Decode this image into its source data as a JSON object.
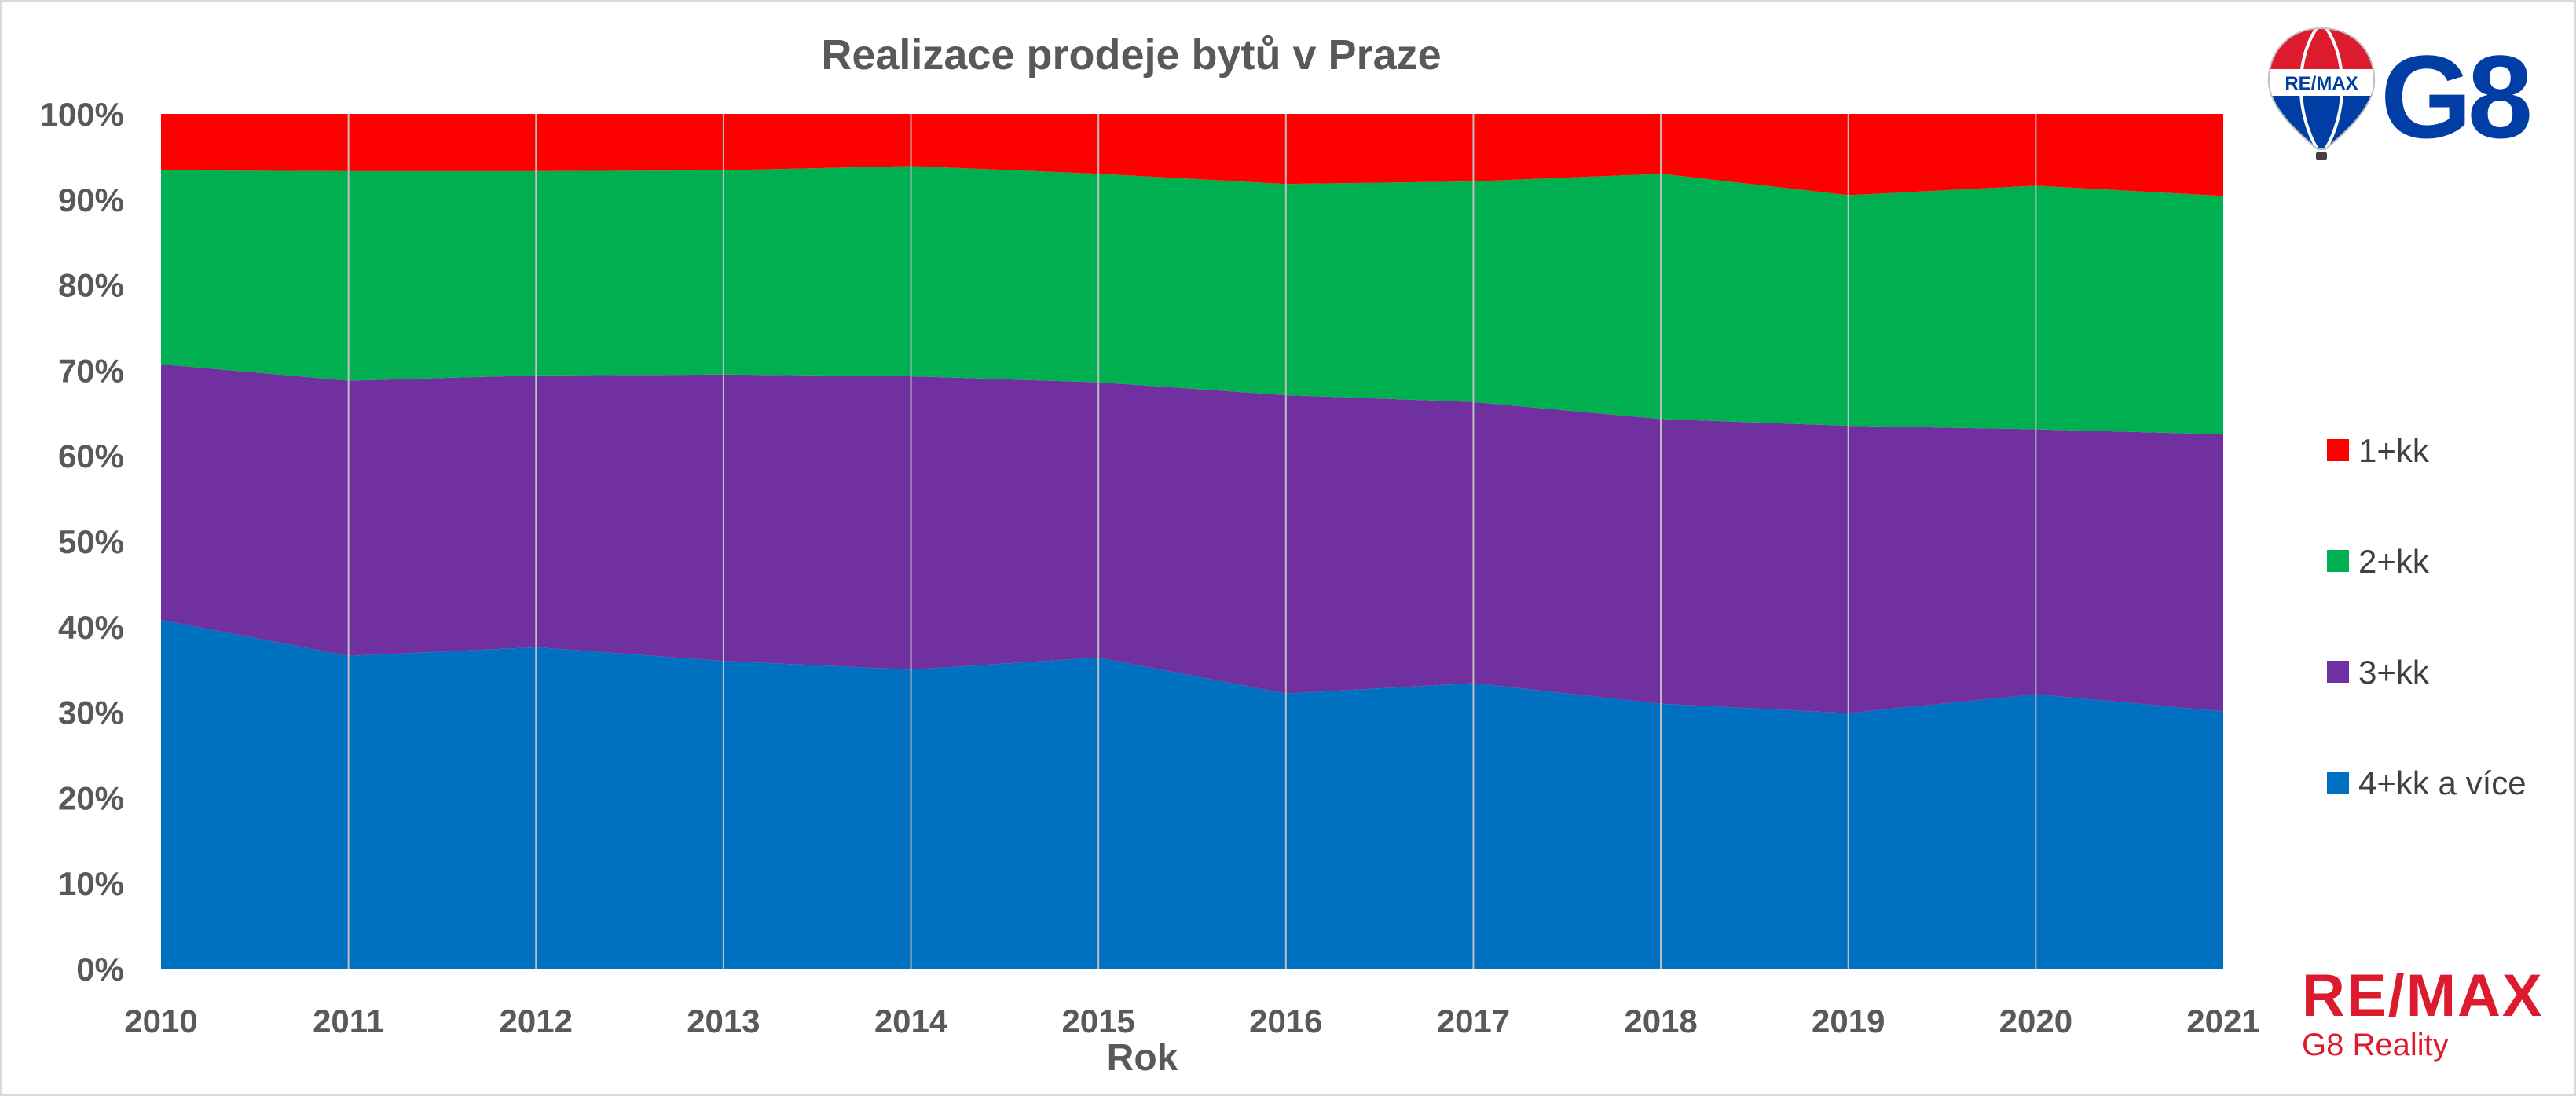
{
  "chart_data": {
    "type": "area",
    "stacking": "percent",
    "title": "Realizace prodeje bytů v Praze",
    "xlabel": "Rok",
    "ylabel": "",
    "x": [
      "2010",
      "2011",
      "2012",
      "2013",
      "2014",
      "2015",
      "2016",
      "2017",
      "2018",
      "2019",
      "2020",
      "2021"
    ],
    "ylim": [
      0,
      100
    ],
    "yticks": [
      "0%",
      "10%",
      "20%",
      "30%",
      "40%",
      "50%",
      "60%",
      "70%",
      "80%",
      "90%",
      "100%"
    ],
    "grid": "vertical",
    "legend_position": "right",
    "series": [
      {
        "name": "4+kk a více",
        "color": "#0070c0",
        "values": [
          40.8,
          36.6,
          37.6,
          36.0,
          35.0,
          36.4,
          32.2,
          33.4,
          31.0,
          29.9,
          32.1,
          30.1
        ]
      },
      {
        "name": "3+kk",
        "color": "#7030a0",
        "values": [
          29.9,
          32.2,
          31.8,
          33.5,
          34.3,
          32.2,
          34.9,
          32.9,
          33.3,
          33.6,
          31.0,
          32.4
        ]
      },
      {
        "name": "2+kk",
        "color": "#00b050",
        "values": [
          22.7,
          24.5,
          23.9,
          23.9,
          24.6,
          24.4,
          24.7,
          25.8,
          28.7,
          27.0,
          28.5,
          27.9
        ]
      },
      {
        "name": "1+kk",
        "color": "#ff0000",
        "values": [
          6.6,
          6.7,
          6.7,
          6.6,
          6.1,
          7.0,
          8.2,
          7.9,
          7.0,
          9.5,
          8.4,
          9.6
        ]
      }
    ]
  },
  "logos": {
    "balloon_text": "RE/MAX",
    "g8": "G8",
    "brand": "RE/MAX",
    "brand_sub": "G8 Reality"
  }
}
